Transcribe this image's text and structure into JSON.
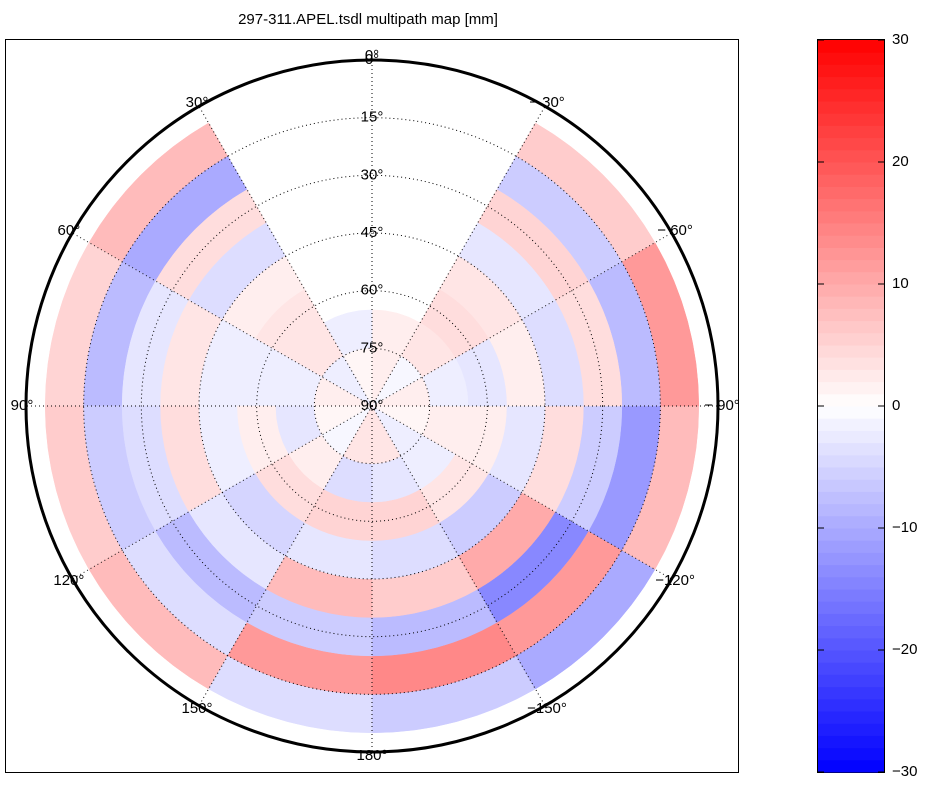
{
  "chart_data": {
    "type": "polar-heatmap",
    "title": "297-311.APEL.tsdl multipath map [mm]",
    "colormap": "blue-white-red",
    "azimuth_bins": [
      -180,
      -150,
      -120,
      -90,
      -60,
      -30,
      0,
      30,
      60,
      90,
      120,
      150,
      180
    ],
    "elevation_bins": [
      5,
      15,
      25,
      35,
      45,
      55,
      65,
      75,
      90
    ],
    "values": [
      [
        -6,
        -10,
        8,
        12,
        6,
        null,
        null,
        8,
        5,
        6,
        8,
        -4
      ],
      [
        14,
        12,
        -12,
        -8,
        -6,
        null,
        null,
        -10,
        -8,
        -6,
        -4,
        12
      ],
      [
        -8,
        -14,
        -6,
        4,
        5,
        null,
        null,
        4,
        -3,
        -4,
        -8,
        -6
      ],
      [
        6,
        10,
        4,
        -4,
        -3,
        null,
        null,
        -4,
        3,
        4,
        -3,
        8
      ],
      [
        -4,
        -6,
        -3,
        2,
        3,
        null,
        null,
        2,
        -2,
        -2,
        -5,
        -3
      ],
      [
        5,
        3,
        2,
        -3,
        4,
        null,
        null,
        3,
        -2,
        2,
        4,
        5
      ],
      [
        -3,
        -2,
        2,
        -2,
        3,
        2,
        -2,
        3,
        -2,
        -3,
        2,
        -4
      ],
      [
        3,
        -2,
        1,
        2,
        -1,
        2,
        1,
        -2,
        2,
        1,
        -1,
        3
      ]
    ],
    "rlim": [
      0,
      90
    ],
    "rticks": [
      {
        "value": 0,
        "label": "0°"
      },
      {
        "value": 15,
        "label": "15°"
      },
      {
        "value": 30,
        "label": "30°"
      },
      {
        "value": 45,
        "label": "45°"
      },
      {
        "value": 60,
        "label": "60°"
      },
      {
        "value": 75,
        "label": "75°"
      },
      {
        "value": 90,
        "label": "90°"
      }
    ],
    "thetaticks": [
      {
        "value": 0,
        "label": "0°"
      },
      {
        "value": 30,
        "label": "30°"
      },
      {
        "value": 60,
        "label": "60°"
      },
      {
        "value": 90,
        "label": "90°"
      },
      {
        "value": 120,
        "label": "120°"
      },
      {
        "value": 150,
        "label": "150°"
      },
      {
        "value": 180,
        "label": "180°"
      },
      {
        "value": -150,
        "label": "−150°"
      },
      {
        "value": -120,
        "label": "−120°"
      },
      {
        "value": -90,
        "label": "− 90°"
      },
      {
        "value": -60,
        "label": "− 60°"
      },
      {
        "value": -30,
        "label": "− 30°"
      }
    ],
    "clim": [
      -30,
      30
    ],
    "cticks": [
      {
        "value": -30,
        "label": "−30"
      },
      {
        "value": -20,
        "label": "−20"
      },
      {
        "value": -10,
        "label": "−10"
      },
      0,
      10,
      20,
      30
    ],
    "grid": true
  }
}
